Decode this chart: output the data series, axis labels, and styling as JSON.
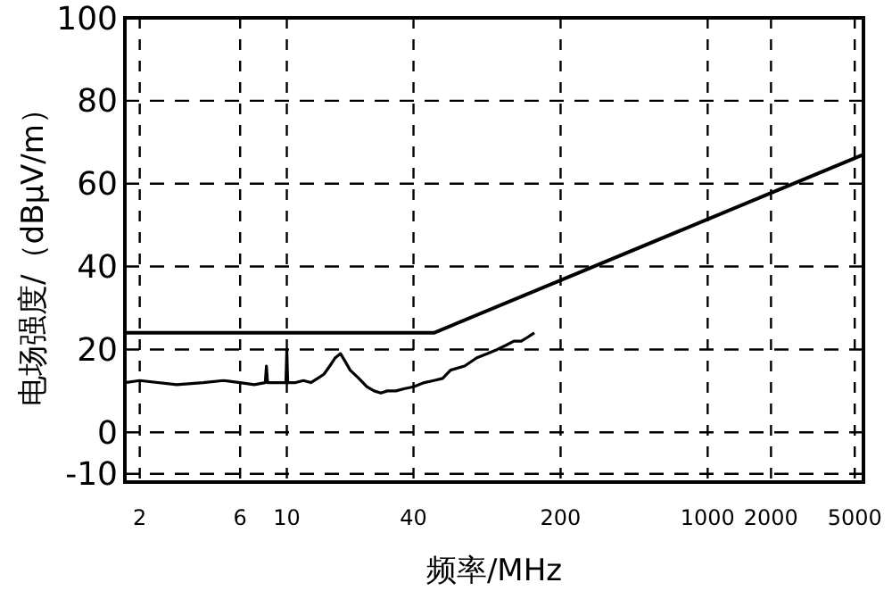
{
  "chart_data": {
    "type": "line",
    "xlabel": "频率/MHz",
    "ylabel": "电场强度/（dBμV/m）",
    "log": "x",
    "grid": true,
    "xlim": [
      1.7,
      5500
    ],
    "ylim": [
      -12,
      100
    ],
    "xticks": [
      2,
      6,
      10,
      40,
      200,
      1000,
      2000,
      5000
    ],
    "yticks": [
      -10,
      0,
      20,
      40,
      60,
      80,
      100
    ],
    "series": [
      {
        "color": "#000000",
        "x": [
          1.7,
          50,
          5500
        ],
        "values": [
          24,
          24,
          67
        ]
      },
      {
        "color": "#000000",
        "x": [
          1.7,
          2,
          3,
          4,
          5,
          6,
          7,
          7.9,
          8,
          8.1,
          9,
          9.9,
          10,
          10.1,
          11,
          12,
          13,
          14,
          15,
          16,
          17,
          18,
          19,
          20,
          22,
          24,
          26,
          28,
          30,
          33,
          36,
          40,
          45,
          50,
          55,
          60,
          70,
          80,
          90,
          100,
          110,
          120,
          130,
          140,
          150
        ],
        "values": [
          12,
          12.5,
          11.5,
          12,
          12.5,
          12,
          11.5,
          12,
          16,
          12,
          12,
          12,
          20,
          12,
          12,
          12.5,
          12,
          13,
          14,
          16,
          18,
          19,
          17,
          15,
          13,
          11,
          10,
          9.5,
          10,
          10,
          10.5,
          11,
          12,
          12.5,
          13,
          15,
          16,
          18,
          19,
          20,
          21,
          22,
          22,
          23,
          24
        ]
      }
    ]
  }
}
